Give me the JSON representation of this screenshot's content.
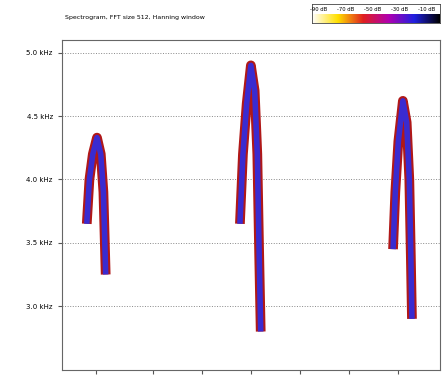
{
  "chart_data": {
    "type": "line",
    "title": "Spectrogram, FFT size 512, Hanning window",
    "xlim": [
      0,
      100
    ],
    "xticks": [
      9,
      24,
      37,
      50,
      63,
      76,
      89
    ],
    "ylim": [
      2.5,
      5.1
    ],
    "yticks": [
      {
        "value": 3.0,
        "label": "3.0 kHz"
      },
      {
        "value": 3.5,
        "label": "3.5 kHz"
      },
      {
        "value": 4.0,
        "label": "4.0 kHz"
      },
      {
        "value": 4.5,
        "label": "4.5 kHz"
      },
      {
        "value": 5.0,
        "label": "5.0 kHz"
      }
    ],
    "grid": "y",
    "tick_labels": "y",
    "series": [
      {
        "color": "#3a2bd0",
        "x": [
          6.6,
          7.3,
          8.2,
          9.3,
          10.3,
          11.0,
          11.6
        ],
        "values": [
          3.65,
          4.0,
          4.2,
          4.33,
          4.2,
          3.9,
          3.25
        ]
      },
      {
        "color": "#3a2bd0",
        "x": [
          47.1,
          47.9,
          48.9,
          50.0,
          51.0,
          51.7,
          52.2,
          52.6
        ],
        "values": [
          3.65,
          4.2,
          4.6,
          4.9,
          4.7,
          4.2,
          3.4,
          2.8
        ]
      },
      {
        "color": "#3a2bd0",
        "x": [
          87.6,
          88.2,
          89.0,
          90.2,
          91.2,
          91.9,
          92.3,
          92.6
        ],
        "values": [
          3.45,
          3.9,
          4.3,
          4.62,
          4.45,
          4.0,
          3.4,
          2.9
        ]
      }
    ],
    "colorbar": {
      "range": [
        -95,
        0
      ],
      "ticks": [
        {
          "value": -90,
          "label": "-90 dB"
        },
        {
          "value": -70,
          "label": "-70 dB"
        },
        {
          "value": -50,
          "label": "-50 dB"
        },
        {
          "value": -30,
          "label": "-30 dB"
        },
        {
          "value": -10,
          "label": "-10 dB"
        }
      ]
    }
  }
}
